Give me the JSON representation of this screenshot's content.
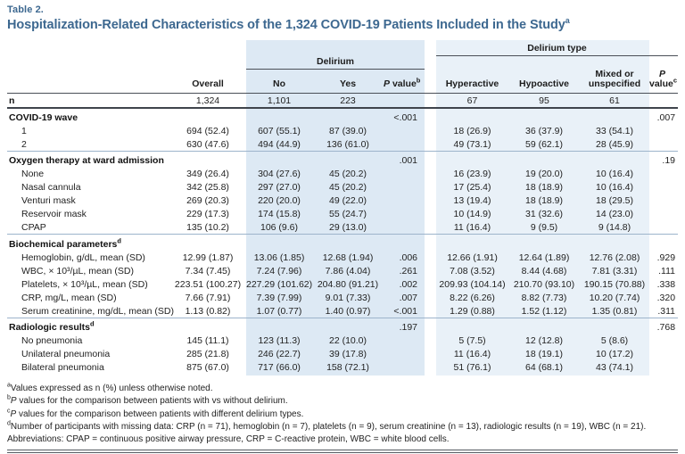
{
  "caption": {
    "table_label": "Table 2.",
    "title": "Hospitalization-Related Characteristics of the 1,324 COVID-19 Patients Included in the Study",
    "title_sup": "a"
  },
  "colors": {
    "accent_blue": "#3d6890",
    "band_delirium": "#dde9f4",
    "band_delirium_type": "#e9f1f8",
    "rule_dark": "#3f444c",
    "rule_light": "#9db4cb"
  },
  "header": {
    "delirium_spanner": "Delirium",
    "delirium_type_spanner": "Delirium type",
    "overall": "Overall",
    "no": "No",
    "yes": "Yes",
    "p_b": {
      "p": "P",
      "word": "value",
      "sup": "b"
    },
    "hyperactive": "Hyperactive",
    "hypoactive": "Hypoactive",
    "mixed_line1": "Mixed or",
    "mixed_line2": "unspecified",
    "p_c": {
      "p": "P",
      "word": "value",
      "sup": "c"
    }
  },
  "table": {
    "rows": [
      {
        "type": "data",
        "label": "n",
        "bold": true,
        "indent": false,
        "first": true,
        "values": [
          "1,324",
          "1,101",
          "223",
          "",
          "67",
          "95",
          "61",
          ""
        ]
      },
      {
        "type": "section",
        "label": "COVID-19 wave",
        "rule": "dark",
        "values": [
          "",
          "",
          "",
          "<.001",
          "",
          "",
          "",
          ".007"
        ]
      },
      {
        "type": "data",
        "label": "1",
        "indent": true,
        "values": [
          "694 (52.4)",
          "607 (55.1)",
          "87 (39.0)",
          "",
          "18 (26.9)",
          "36 (37.9)",
          "33 (54.1)",
          ""
        ]
      },
      {
        "type": "data",
        "label": "2",
        "indent": true,
        "values": [
          "630 (47.6)",
          "494 (44.9)",
          "136 (61.0)",
          "",
          "49 (73.1)",
          "59 (62.1)",
          "28 (45.9)",
          ""
        ]
      },
      {
        "type": "section",
        "label": "Oxygen therapy at ward admission",
        "rule": "light",
        "values": [
          "",
          "",
          "",
          ".001",
          "",
          "",
          "",
          ".19"
        ]
      },
      {
        "type": "data",
        "label": "None",
        "indent": true,
        "values": [
          "349 (26.4)",
          "304 (27.6)",
          "45 (20.2)",
          "",
          "16 (23.9)",
          "19 (20.0)",
          "10 (16.4)",
          ""
        ]
      },
      {
        "type": "data",
        "label": "Nasal cannula",
        "indent": true,
        "values": [
          "342 (25.8)",
          "297 (27.0)",
          "45 (20.2)",
          "",
          "17 (25.4)",
          "18 (18.9)",
          "10 (16.4)",
          ""
        ]
      },
      {
        "type": "data",
        "label": "Venturi mask",
        "indent": true,
        "values": [
          "269 (20.3)",
          "220 (20.0)",
          "49 (22.0)",
          "",
          "13 (19.4)",
          "18 (18.9)",
          "18 (29.5)",
          ""
        ]
      },
      {
        "type": "data",
        "label": "Reservoir mask",
        "indent": true,
        "values": [
          "229 (17.3)",
          "174 (15.8)",
          "55 (24.7)",
          "",
          "10 (14.9)",
          "31 (32.6)",
          "14 (23.0)",
          ""
        ]
      },
      {
        "type": "data",
        "label": "CPAP",
        "indent": true,
        "values": [
          "135 (10.2)",
          "106 (9.6)",
          "29 (13.0)",
          "",
          "11 (16.4)",
          "9 (9.5)",
          "9 (14.8)",
          ""
        ]
      },
      {
        "type": "section",
        "label": "Biochemical parameters",
        "label_sup": "d",
        "rule": "light",
        "values": [
          "",
          "",
          "",
          "",
          "",
          "",
          "",
          ""
        ]
      },
      {
        "type": "data",
        "label": "Hemoglobin, g/dL, mean (SD)",
        "indent": true,
        "values": [
          "12.99 (1.87)",
          "13.06 (1.85)",
          "12.68 (1.94)",
          ".006",
          "12.66 (1.91)",
          "12.64 (1.89)",
          "12.76 (2.08)",
          ".929"
        ]
      },
      {
        "type": "data",
        "label": "WBC, × 10³/µL, mean (SD)",
        "indent": true,
        "values": [
          "7.34 (7.45)",
          "7.24 (7.96)",
          "7.86 (4.04)",
          ".261",
          "7.08 (3.52)",
          "8.44 (4.68)",
          "7.81 (3.31)",
          ".111"
        ]
      },
      {
        "type": "data",
        "label": "Platelets, × 10³/µL, mean (SD)",
        "indent": true,
        "values": [
          "223.51 (100.27)",
          "227.29 (101.62)",
          "204.80 (91.21)",
          ".002",
          "209.93 (104.14)",
          "210.70 (93.10)",
          "190.15 (70.88)",
          ".338"
        ]
      },
      {
        "type": "data",
        "label": "CRP, mg/L, mean (SD)",
        "indent": true,
        "values": [
          "7.66 (7.91)",
          "7.39 (7.99)",
          "9.01 (7.33)",
          ".007",
          "8.22 (6.26)",
          "8.82 (7.73)",
          "10.20 (7.74)",
          ".320"
        ]
      },
      {
        "type": "data",
        "label": "Serum creatinine, mg/dL, mean (SD)",
        "indent": true,
        "values": [
          "1.13 (0.82)",
          "1.07 (0.77)",
          "1.40 (0.97)",
          "<.001",
          "1.29 (0.88)",
          "1.52 (1.12)",
          "1.35 (0.81)",
          ".311"
        ]
      },
      {
        "type": "section",
        "label": "Radiologic results",
        "label_sup": "d",
        "rule": "light",
        "values": [
          "",
          "",
          "",
          ".197",
          "",
          "",
          "",
          ".768"
        ]
      },
      {
        "type": "data",
        "label": "No pneumonia",
        "indent": true,
        "values": [
          "145 (11.1)",
          "123 (11.3)",
          "22 (10.0)",
          "",
          "5 (7.5)",
          "12 (12.8)",
          "5 (8.6)",
          ""
        ]
      },
      {
        "type": "data",
        "label": "Unilateral pneumonia",
        "indent": true,
        "values": [
          "285 (21.8)",
          "246 (22.7)",
          "39 (17.8)",
          "",
          "11 (16.4)",
          "18 (19.1)",
          "10 (17.2)",
          ""
        ]
      },
      {
        "type": "data",
        "label": "Bilateral pneumonia",
        "indent": true,
        "values": [
          "875 (67.0)",
          "717 (66.0)",
          "158 (72.1)",
          "",
          "51 (76.1)",
          "64 (68.1)",
          "43 (74.1)",
          ""
        ]
      }
    ]
  },
  "footnotes": [
    {
      "sup": "a",
      "p": "",
      "text": "Values expressed as n (%) unless otherwise noted."
    },
    {
      "sup": "b",
      "p": "P",
      "text": " values for the comparison between patients with vs without delirium."
    },
    {
      "sup": "c",
      "p": "P",
      "text": " values for the comparison between patients with different delirium types."
    },
    {
      "sup": "d",
      "p": "",
      "text": "Number of participants with missing data: CRP (n = 71), hemoglobin (n = 7), platelets (n = 9), serum creatinine (n = 13), radiologic results (n = 19), WBC (n = 21)."
    },
    {
      "sup": "",
      "p": "",
      "text": "Abbreviations: CPAP = continuous positive airway pressure, CRP = C-reactive protein, WBC = white blood cells."
    }
  ]
}
